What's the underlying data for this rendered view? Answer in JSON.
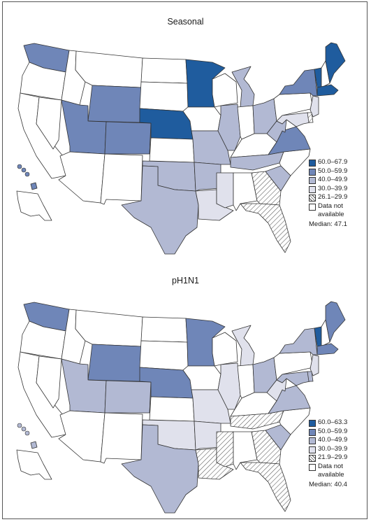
{
  "colors": {
    "c60": "#1f5c9e",
    "c50": "#6f86b8",
    "c40": "#b2b9d3",
    "c30": "#e0e1ec",
    "nodata": "#ffffff",
    "stroke": "#333333"
  },
  "maps": [
    {
      "title": "Seasonal",
      "legend": [
        {
          "label": "60.0–67.9",
          "fill": "c60"
        },
        {
          "label": "50.0–59.9",
          "fill": "c50"
        },
        {
          "label": "40.0–49.9",
          "fill": "c40"
        },
        {
          "label": "30.0–39.9",
          "fill": "c30"
        },
        {
          "label": "26.1–29.9",
          "fill": "hatch"
        },
        {
          "label": "Data not available",
          "fill": "nodata"
        }
      ],
      "median": "Median: 47.1",
      "states": {
        "WA": "c50",
        "OR": "nodata",
        "CA": "nodata",
        "ID": "nodata",
        "NV": "nodata",
        "MT": "nodata",
        "WY": "c50",
        "UT": "c50",
        "AZ": "nodata",
        "CO": "c50",
        "NM": "nodata",
        "ND": "nodata",
        "SD": "nodata",
        "NE": "c60",
        "KS": "nodata",
        "OK": "c40",
        "TX": "c40",
        "MN": "c60",
        "IA": "nodata",
        "MO": "c40",
        "AR": "c40",
        "LA": "c30",
        "WI": "nodata",
        "IL": "c40",
        "MS": "c30",
        "MI": "c40",
        "IN": "nodata",
        "OH": "c40",
        "KY": "nodata",
        "TN": "c40",
        "AL": "nodata",
        "GA": "hatch",
        "FL": "hatch",
        "SC": "c40",
        "NC": "nodata",
        "VA": "c50",
        "WV": "c40",
        "PA": "nodata",
        "NY": "c50",
        "ME": "c60",
        "VT": "c60",
        "NH": "nodata",
        "MA": "c60",
        "NJ": "c30",
        "MD": "c30",
        "DE": "hatch",
        "AK": "nodata",
        "HI": "c50"
      }
    },
    {
      "title": "pH1N1",
      "legend": [
        {
          "label": "60.0–63.3",
          "fill": "c60"
        },
        {
          "label": "50.0–59.9",
          "fill": "c50"
        },
        {
          "label": "40.0–49.9",
          "fill": "c40"
        },
        {
          "label": "30.0–39.9",
          "fill": "c30"
        },
        {
          "label": "21.9–29.9",
          "fill": "hatch"
        },
        {
          "label": "Data not available",
          "fill": "nodata"
        }
      ],
      "median": "Median: 40.4",
      "states": {
        "WA": "c50",
        "OR": "nodata",
        "CA": "nodata",
        "ID": "nodata",
        "NV": "nodata",
        "MT": "nodata",
        "WY": "c50",
        "UT": "c40",
        "AZ": "nodata",
        "CO": "c40",
        "NM": "nodata",
        "ND": "nodata",
        "SD": "nodata",
        "NE": "c50",
        "KS": "nodata",
        "OK": "c30",
        "TX": "c40",
        "MN": "c50",
        "IA": "nodata",
        "MO": "c30",
        "AR": "c30",
        "LA": "hatch",
        "WI": "nodata",
        "IL": "c30",
        "MS": "hatch",
        "MI": "c30",
        "IN": "nodata",
        "OH": "c40",
        "KY": "nodata",
        "TN": "hatch",
        "AL": "nodata",
        "GA": "hatch",
        "FL": "hatch",
        "SC": "c40",
        "NC": "nodata",
        "VA": "c40",
        "WV": "c30",
        "PA": "nodata",
        "NY": "c40",
        "ME": "c50",
        "VT": "c60",
        "NH": "nodata",
        "MA": "c50",
        "NJ": "c30",
        "MD": "c40",
        "DE": "c40",
        "AK": "nodata",
        "HI": "c40"
      }
    }
  ]
}
